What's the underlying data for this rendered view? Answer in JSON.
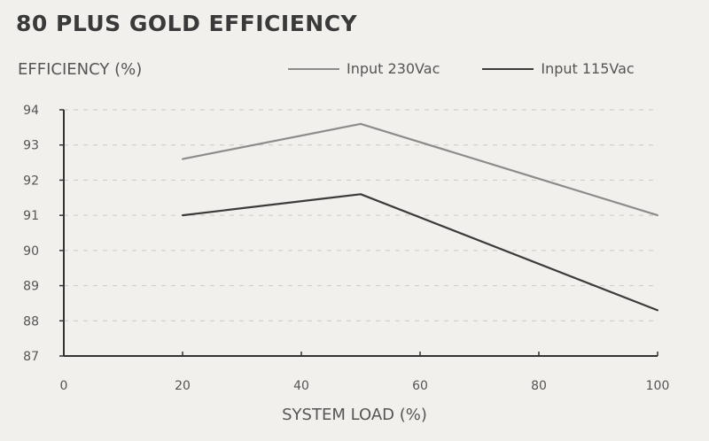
{
  "chart_data": {
    "type": "line",
    "title": "80 PLUS GOLD EFFICIENCY",
    "ylabel": "EFFICIENCY (%)",
    "xlabel": "SYSTEM LOAD (%)",
    "xlim": [
      0,
      100
    ],
    "ylim": [
      87,
      94
    ],
    "xticks": [
      0,
      20,
      40,
      60,
      80,
      100
    ],
    "yticks": [
      87,
      88,
      89,
      90,
      91,
      92,
      93,
      94
    ],
    "grid": "horizontal-dashed",
    "legend_position": "top-right",
    "series": [
      {
        "name": "Input 230Vac",
        "color": "#8c8c8c",
        "x": [
          20,
          50,
          100
        ],
        "y": [
          92.6,
          93.6,
          91.0
        ]
      },
      {
        "name": "Input 115Vac",
        "color": "#3b3b3b",
        "x": [
          20,
          50,
          100
        ],
        "y": [
          91.0,
          91.6,
          88.3
        ]
      }
    ]
  }
}
